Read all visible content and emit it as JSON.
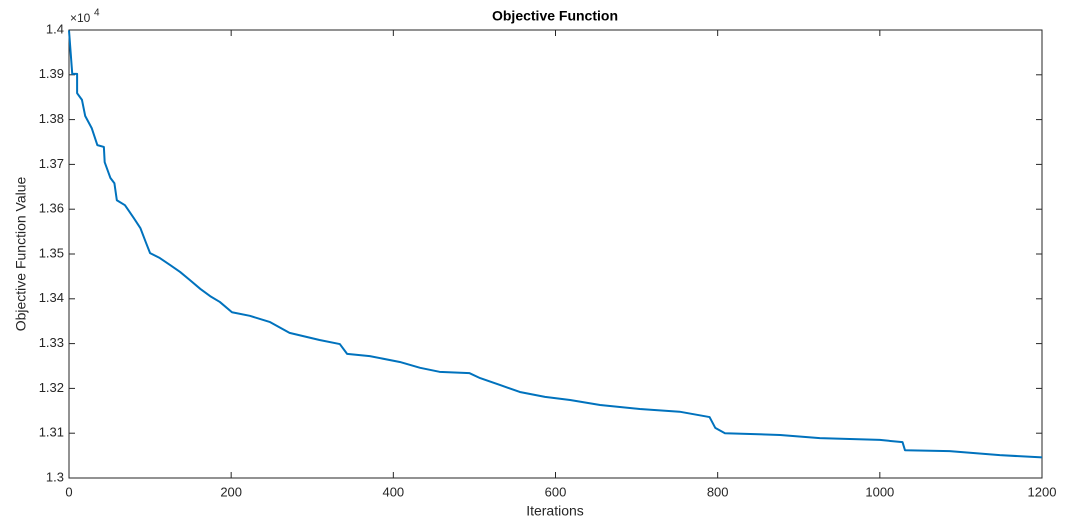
{
  "chart_data": {
    "type": "line",
    "title": "Objective Function",
    "x_label": "Iterations",
    "y_label": "Objective Function Value",
    "y_exponent": {
      "base": "×10",
      "power": "4"
    },
    "x": [
      0,
      4,
      10,
      10,
      16,
      20,
      28,
      35,
      43,
      44,
      51,
      56,
      59,
      69,
      80,
      88,
      95,
      100,
      112,
      125,
      137,
      149,
      162,
      174,
      186,
      201,
      223,
      248,
      272,
      309,
      334,
      343,
      371,
      408,
      433,
      457,
      494,
      507,
      531,
      556,
      587,
      618,
      655,
      704,
      753,
      790,
      797,
      809,
      877,
      926,
      1000,
      1028,
      1031,
      1086,
      1148,
      1200
    ],
    "series": [
      {
        "name": "Objective",
        "color": "#0072bd",
        "values": [
          1.3999,
          1.3902,
          1.3902,
          1.3859,
          1.3844,
          1.3808,
          1.3781,
          1.3743,
          1.3739,
          1.3705,
          1.367,
          1.3658,
          1.362,
          1.3609,
          1.358,
          1.3558,
          1.3525,
          1.3502,
          1.3491,
          1.3475,
          1.346,
          1.3442,
          1.3422,
          1.3406,
          1.3393,
          1.337,
          1.3362,
          1.3348,
          1.3324,
          1.3308,
          1.3299,
          1.3277,
          1.3272,
          1.3259,
          1.3246,
          1.3237,
          1.3234,
          1.3223,
          1.3208,
          1.3192,
          1.3181,
          1.3174,
          1.3163,
          1.3154,
          1.3148,
          1.3136,
          1.3112,
          1.31,
          1.3096,
          1.3089,
          1.3085,
          1.308,
          1.3062,
          1.306,
          1.3051,
          1.3046
        ]
      }
    ],
    "xlim": [
      0,
      1200
    ],
    "xticks": [
      0,
      200,
      400,
      600,
      800,
      1000,
      1200
    ],
    "ylim": [
      1.3,
      1.4
    ],
    "yticks": [
      1.3,
      1.31,
      1.32,
      1.33,
      1.34,
      1.35,
      1.36,
      1.37,
      1.38,
      1.39,
      1.4
    ]
  }
}
